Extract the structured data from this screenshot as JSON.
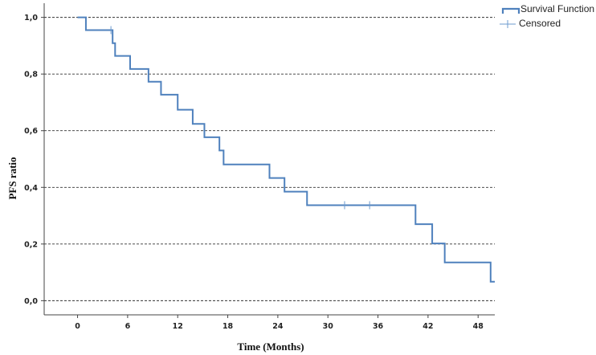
{
  "chart_data": {
    "type": "line",
    "xlabel": "Time (Months)",
    "ylabel": "PFS ratio",
    "xlim": [
      -4,
      50
    ],
    "ylim": [
      -0.05,
      1.05
    ],
    "x_ticks": [
      0,
      6,
      12,
      18,
      24,
      30,
      36,
      42,
      48
    ],
    "x_tick_labels": [
      "0",
      "6",
      "12",
      "18",
      "24",
      "30",
      "36",
      "42",
      "48"
    ],
    "y_ticks": [
      0.0,
      0.2,
      0.4,
      0.6,
      0.8,
      1.0
    ],
    "y_tick_labels": [
      "0,0",
      "0,2",
      "0,4",
      "0,6",
      "0,8",
      "1,0"
    ],
    "grid": "horizontal dashed",
    "legend_position": "top-right",
    "colors": {
      "series": "#4f81bd",
      "grid": "#333333",
      "axis": "#444444"
    },
    "series": [
      {
        "name": "Survival Function",
        "style": "step",
        "points": [
          [
            0,
            1.0
          ],
          [
            1,
            0.955
          ],
          [
            4.2,
            0.909
          ],
          [
            4.5,
            0.864
          ],
          [
            6.3,
            0.818
          ],
          [
            8.5,
            0.773
          ],
          [
            10,
            0.727
          ],
          [
            12,
            0.674
          ],
          [
            13.8,
            0.624
          ],
          [
            15.2,
            0.577
          ],
          [
            17,
            0.53
          ],
          [
            17.5,
            0.481
          ],
          [
            23,
            0.433
          ],
          [
            24.8,
            0.385
          ],
          [
            27.5,
            0.337
          ],
          [
            40.5,
            0.27
          ],
          [
            42.5,
            0.202
          ],
          [
            44,
            0.135
          ],
          [
            49.5,
            0.067
          ],
          [
            53.5,
            0.067
          ]
        ]
      },
      {
        "name": "Censored",
        "style": "marker",
        "points": [
          [
            4,
            0.955
          ],
          [
            32,
            0.337
          ],
          [
            35,
            0.337
          ]
        ]
      }
    ]
  }
}
